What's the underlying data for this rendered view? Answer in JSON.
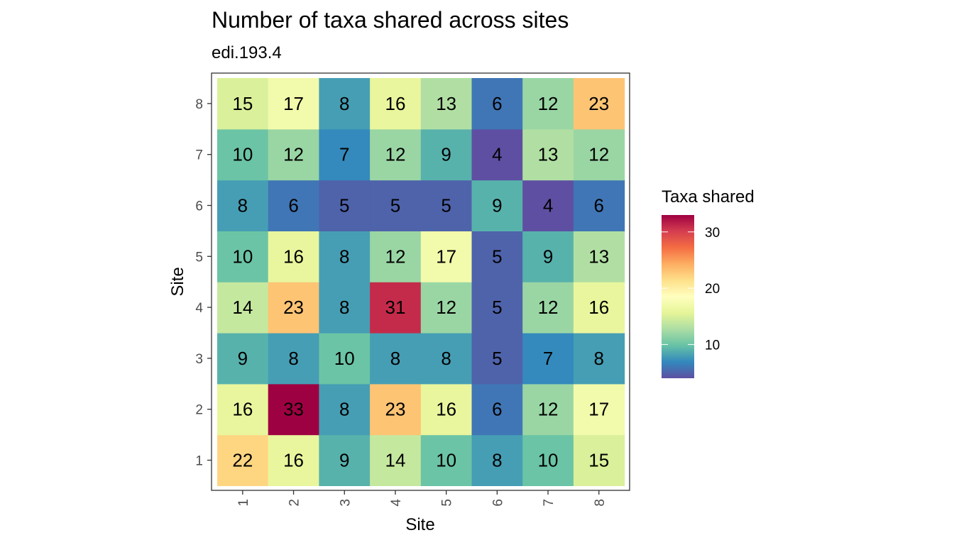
{
  "chart_data": {
    "type": "heatmap",
    "title": "Number of taxa shared across sites",
    "subtitle": "edi.193.4",
    "xlabel": "Site",
    "ylabel": "Site",
    "x_categories": [
      "1",
      "2",
      "3",
      "4",
      "5",
      "6",
      "7",
      "8"
    ],
    "y_categories": [
      "1",
      "2",
      "3",
      "4",
      "5",
      "6",
      "7",
      "8"
    ],
    "values": [
      [
        22,
        16,
        9,
        14,
        10,
        8,
        10,
        15
      ],
      [
        16,
        33,
        8,
        23,
        16,
        6,
        12,
        17
      ],
      [
        9,
        8,
        10,
        8,
        8,
        5,
        7,
        8
      ],
      [
        14,
        23,
        8,
        31,
        12,
        5,
        12,
        16
      ],
      [
        10,
        16,
        8,
        12,
        17,
        5,
        9,
        13
      ],
      [
        8,
        6,
        5,
        5,
        5,
        9,
        4,
        6
      ],
      [
        10,
        12,
        7,
        12,
        9,
        4,
        13,
        12
      ],
      [
        15,
        17,
        8,
        16,
        13,
        6,
        12,
        23
      ]
    ],
    "legend": {
      "title": "Taxa shared",
      "placement": "right",
      "range": [
        4,
        33
      ],
      "breaks": [
        10,
        20,
        30
      ],
      "palette": [
        "#5E4FA2",
        "#3288BD",
        "#66C2A5",
        "#ABDDA4",
        "#E6F598",
        "#FFFFBF",
        "#FEE08B",
        "#FDAE61",
        "#F46D43",
        "#D53E4F",
        "#9E0142"
      ]
    },
    "grid": false
  }
}
